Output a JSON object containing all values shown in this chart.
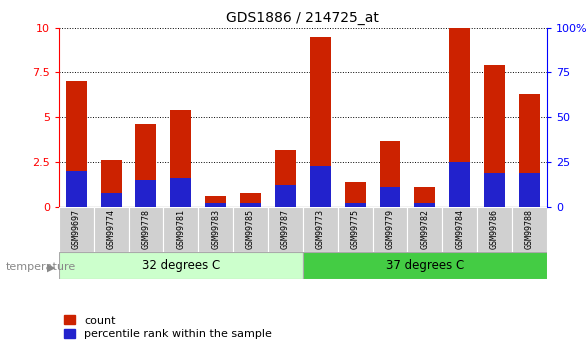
{
  "title": "GDS1886 / 214725_at",
  "samples": [
    "GSM99697",
    "GSM99774",
    "GSM99778",
    "GSM99781",
    "GSM99783",
    "GSM99785",
    "GSM99787",
    "GSM99773",
    "GSM99775",
    "GSM99779",
    "GSM99782",
    "GSM99784",
    "GSM99786",
    "GSM99788"
  ],
  "count": [
    7.0,
    2.6,
    4.6,
    5.4,
    0.6,
    0.8,
    3.2,
    9.5,
    1.4,
    3.7,
    1.1,
    10.0,
    7.9,
    6.3
  ],
  "percentile_right": [
    20,
    8,
    15,
    16,
    2,
    2,
    12,
    23,
    2,
    11,
    2,
    25,
    19,
    19
  ],
  "group1_label": "32 degrees C",
  "group2_label": "37 degrees C",
  "group1_count": 7,
  "group2_count": 7,
  "bar_color_red": "#cc2200",
  "bar_color_blue": "#2222cc",
  "group1_bg": "#ccffcc",
  "group2_bg": "#44cc44",
  "xticklabel_bg": "#d0d0d0",
  "ylim_left": [
    0,
    10
  ],
  "ylim_right": [
    0,
    100
  ],
  "yticks_left": [
    0,
    2.5,
    5.0,
    7.5,
    10
  ],
  "yticks_right": [
    0,
    25,
    50,
    75,
    100
  ],
  "temperature_label": "temperature",
  "legend_count": "count",
  "legend_percentile": "percentile rank within the sample",
  "title_fontsize": 10,
  "tick_fontsize": 8,
  "bar_width": 0.6
}
